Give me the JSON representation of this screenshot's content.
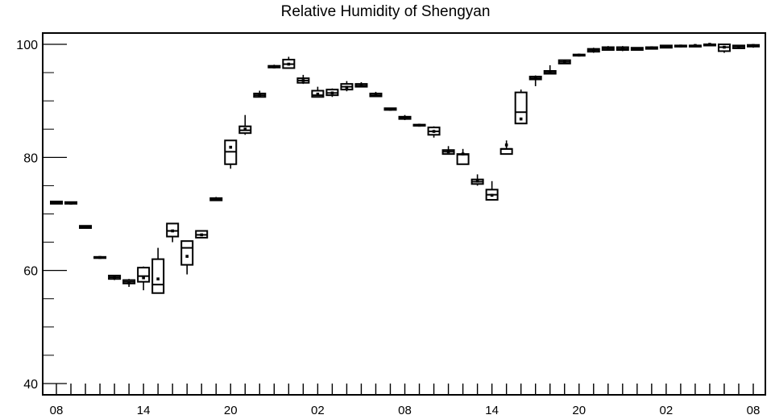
{
  "chart_data": {
    "type": "box",
    "title": "Relative Humidity of Shengyan",
    "xlabel": "",
    "ylabel": "",
    "ylim": [
      38,
      102
    ],
    "y_ticks": [
      40,
      60,
      80,
      100
    ],
    "x_tick_labels": [
      "08",
      "14",
      "20",
      "02",
      "08",
      "14",
      "20",
      "02",
      "08"
    ],
    "grid": false,
    "x_index_range": [
      -0.5,
      47.5
    ],
    "boxes": [
      {
        "x": 0,
        "q1": 71.8,
        "median": 72.0,
        "q3": 72.2,
        "whisker_low": 71.8,
        "whisker_high": 72.2,
        "mean": 72.0
      },
      {
        "x": 1,
        "q1": 71.8,
        "median": 72.0,
        "q3": 72.1,
        "whisker_low": 71.8,
        "whisker_high": 72.1,
        "mean": 71.9
      },
      {
        "x": 2,
        "q1": 67.5,
        "median": 67.7,
        "q3": 67.9,
        "whisker_low": 67.5,
        "whisker_high": 67.9,
        "mean": 67.7
      },
      {
        "x": 3,
        "q1": 62.2,
        "median": 62.3,
        "q3": 62.4,
        "whisker_low": 62.2,
        "whisker_high": 62.4,
        "mean": 62.3
      },
      {
        "x": 4,
        "q1": 58.5,
        "median": 58.8,
        "q3": 59.1,
        "whisker_low": 58.3,
        "whisker_high": 59.2,
        "mean": 58.8
      },
      {
        "x": 5,
        "q1": 57.7,
        "median": 58.0,
        "q3": 58.3,
        "whisker_low": 57.1,
        "whisker_high": 58.5,
        "mean": 57.8
      },
      {
        "x": 6,
        "q1": 58.0,
        "median": 59.0,
        "q3": 60.5,
        "whisker_low": 56.5,
        "whisker_high": 60.7,
        "mean": 58.7
      },
      {
        "x": 7,
        "q1": 56.0,
        "median": 57.5,
        "q3": 62.0,
        "whisker_low": 56.0,
        "whisker_high": 64.0,
        "mean": 58.5
      },
      {
        "x": 8,
        "q1": 66.0,
        "median": 67.0,
        "q3": 68.3,
        "whisker_low": 65.0,
        "whisker_high": 68.3,
        "mean": 67.0
      },
      {
        "x": 9,
        "q1": 61.0,
        "median": 64.0,
        "q3": 65.2,
        "whisker_low": 59.3,
        "whisker_high": 65.2,
        "mean": 62.5
      },
      {
        "x": 10,
        "q1": 65.8,
        "median": 66.3,
        "q3": 67.0,
        "whisker_low": 65.8,
        "whisker_high": 67.0,
        "mean": 66.3
      },
      {
        "x": 11,
        "q1": 72.4,
        "median": 72.6,
        "q3": 72.8,
        "whisker_low": 72.3,
        "whisker_high": 73.0,
        "mean": 72.6
      },
      {
        "x": 12,
        "q1": 78.8,
        "median": 81.0,
        "q3": 83.0,
        "whisker_low": 78.0,
        "whisker_high": 83.0,
        "mean": 81.8
      },
      {
        "x": 13,
        "q1": 84.3,
        "median": 84.8,
        "q3": 85.5,
        "whisker_low": 84.0,
        "whisker_high": 87.5,
        "mean": 85.0
      },
      {
        "x": 14,
        "q1": 90.7,
        "median": 91.0,
        "q3": 91.3,
        "whisker_low": 90.6,
        "whisker_high": 91.8,
        "mean": 91.0
      },
      {
        "x": 15,
        "q1": 95.9,
        "median": 96.0,
        "q3": 96.2,
        "whisker_low": 95.8,
        "whisker_high": 96.4,
        "mean": 96.0
      },
      {
        "x": 16,
        "q1": 95.8,
        "median": 96.5,
        "q3": 97.3,
        "whisker_low": 95.8,
        "whisker_high": 97.8,
        "mean": 96.5
      },
      {
        "x": 17,
        "q1": 93.2,
        "median": 93.6,
        "q3": 94.0,
        "whisker_low": 93.0,
        "whisker_high": 94.6,
        "mean": 93.6
      },
      {
        "x": 18,
        "q1": 90.7,
        "median": 91.0,
        "q3": 91.8,
        "whisker_low": 90.7,
        "whisker_high": 92.5,
        "mean": 91.2
      },
      {
        "x": 19,
        "q1": 91.0,
        "median": 91.4,
        "q3": 92.0,
        "whisker_low": 90.7,
        "whisker_high": 92.2,
        "mean": 91.4
      },
      {
        "x": 20,
        "q1": 92.0,
        "median": 92.5,
        "q3": 93.0,
        "whisker_low": 91.7,
        "whisker_high": 93.5,
        "mean": 92.4
      },
      {
        "x": 21,
        "q1": 92.5,
        "median": 92.7,
        "q3": 93.0,
        "whisker_low": 92.4,
        "whisker_high": 93.3,
        "mean": 92.7
      },
      {
        "x": 22,
        "q1": 90.8,
        "median": 91.0,
        "q3": 91.3,
        "whisker_low": 90.7,
        "whisker_high": 91.6,
        "mean": 91.0
      },
      {
        "x": 23,
        "q1": 88.4,
        "median": 88.5,
        "q3": 88.7,
        "whisker_low": 88.3,
        "whisker_high": 88.8,
        "mean": 88.5
      },
      {
        "x": 24,
        "q1": 86.8,
        "median": 87.0,
        "q3": 87.2,
        "whisker_low": 86.6,
        "whisker_high": 87.5,
        "mean": 87.0
      },
      {
        "x": 25,
        "q1": 85.6,
        "median": 85.7,
        "q3": 85.8,
        "whisker_low": 85.5,
        "whisker_high": 85.9,
        "mean": 85.7
      },
      {
        "x": 26,
        "q1": 84.0,
        "median": 84.6,
        "q3": 85.3,
        "whisker_low": 83.5,
        "whisker_high": 85.5,
        "mean": 84.6
      },
      {
        "x": 27,
        "q1": 80.6,
        "median": 81.0,
        "q3": 81.3,
        "whisker_low": 80.6,
        "whisker_high": 82.0,
        "mean": 81.0
      },
      {
        "x": 28,
        "q1": 78.8,
        "median": 80.5,
        "q3": 80.6,
        "whisker_low": 78.8,
        "whisker_high": 81.5,
        "mean": 80.6
      },
      {
        "x": 29,
        "q1": 75.3,
        "median": 75.7,
        "q3": 76.1,
        "whisker_low": 75.0,
        "whisker_high": 77.0,
        "mean": 75.8
      },
      {
        "x": 30,
        "q1": 72.5,
        "median": 73.4,
        "q3": 74.3,
        "whisker_low": 72.5,
        "whisker_high": 75.8,
        "mean": 73.3
      },
      {
        "x": 31,
        "q1": 80.6,
        "median": 81.5,
        "q3": 81.5,
        "whisker_low": 80.6,
        "whisker_high": 83.0,
        "mean": 82.2
      },
      {
        "x": 32,
        "q1": 86.0,
        "median": 88.0,
        "q3": 91.5,
        "whisker_low": 86.0,
        "whisker_high": 92.0,
        "mean": 86.8
      },
      {
        "x": 33,
        "q1": 93.8,
        "median": 94.0,
        "q3": 94.3,
        "whisker_low": 92.6,
        "whisker_high": 94.5,
        "mean": 94.0
      },
      {
        "x": 34,
        "q1": 94.8,
        "median": 95.0,
        "q3": 95.3,
        "whisker_low": 94.8,
        "whisker_high": 96.3,
        "mean": 95.0
      },
      {
        "x": 35,
        "q1": 96.6,
        "median": 96.9,
        "q3": 97.2,
        "whisker_low": 96.6,
        "whisker_high": 97.3,
        "mean": 96.9
      },
      {
        "x": 36,
        "q1": 98.0,
        "median": 98.1,
        "q3": 98.2,
        "whisker_low": 98.0,
        "whisker_high": 98.3,
        "mean": 98.1
      },
      {
        "x": 37,
        "q1": 98.7,
        "median": 99.0,
        "q3": 99.2,
        "whisker_low": 98.5,
        "whisker_high": 99.4,
        "mean": 99.0
      },
      {
        "x": 38,
        "q1": 99.0,
        "median": 99.3,
        "q3": 99.5,
        "whisker_low": 98.9,
        "whisker_high": 99.7,
        "mean": 99.3
      },
      {
        "x": 39,
        "q1": 99.0,
        "median": 99.2,
        "q3": 99.5,
        "whisker_low": 98.8,
        "whisker_high": 99.7,
        "mean": 99.2
      },
      {
        "x": 40,
        "q1": 99.0,
        "median": 99.2,
        "q3": 99.4,
        "whisker_low": 99.0,
        "whisker_high": 99.5,
        "mean": 99.2
      },
      {
        "x": 41,
        "q1": 99.2,
        "median": 99.4,
        "q3": 99.5,
        "whisker_low": 99.2,
        "whisker_high": 99.6,
        "mean": 99.4
      },
      {
        "x": 42,
        "q1": 99.4,
        "median": 99.6,
        "q3": 99.8,
        "whisker_low": 99.3,
        "whisker_high": 99.9,
        "mean": 99.6
      },
      {
        "x": 43,
        "q1": 99.6,
        "median": 99.7,
        "q3": 99.8,
        "whisker_low": 99.5,
        "whisker_high": 99.9,
        "mean": 99.7
      },
      {
        "x": 44,
        "q1": 99.7,
        "median": 99.8,
        "q3": 99.8,
        "whisker_low": 99.6,
        "whisker_high": 99.9,
        "mean": 99.8
      },
      {
        "x": 45,
        "q1": 99.9,
        "median": 100.0,
        "q3": 100.0,
        "whisker_low": 99.9,
        "whisker_high": 100.0,
        "mean": 100.0
      },
      {
        "x": 46,
        "q1": 98.8,
        "median": 99.5,
        "q3": 100.0,
        "whisker_low": 98.5,
        "whisker_high": 100.0,
        "mean": 99.5
      },
      {
        "x": 47,
        "q1": 99.3,
        "median": 99.6,
        "q3": 99.8,
        "whisker_low": 99.2,
        "whisker_high": 99.9,
        "mean": 99.6
      },
      {
        "x": 48,
        "q1": 99.6,
        "median": 99.8,
        "q3": 99.9,
        "whisker_low": 99.4,
        "whisker_high": 100.0,
        "mean": 99.8
      }
    ]
  }
}
